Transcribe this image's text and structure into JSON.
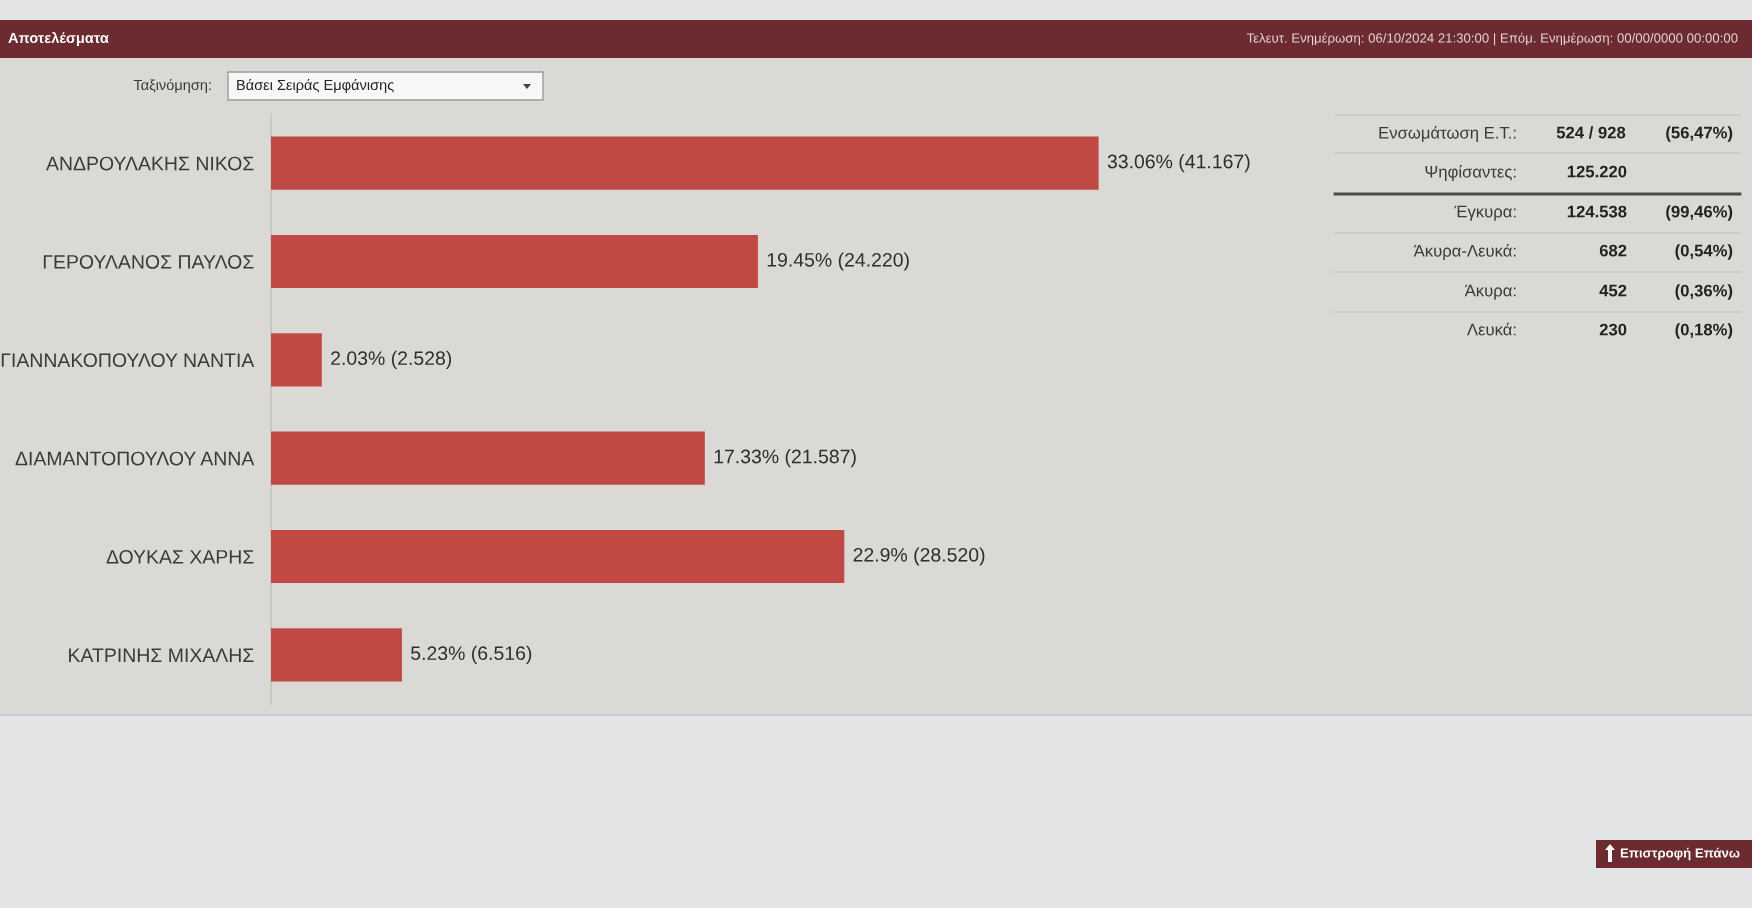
{
  "chart_data": {
    "type": "bar",
    "orientation": "horizontal",
    "title": "Αποτελέσματα",
    "subtitle": "Τελευτ. Ενημέρωση: 06/10/2024 21:30:00 | Επόμ. Ενημέρωση: 00/00/0000 00:00:00",
    "categories": [
      "ΑΝΔΡΟΥΛΑΚΗΣ ΝΙΚΟΣ",
      "ΓΕΡΟΥΛΑΝΟΣ ΠΑΥΛΟΣ",
      "ΓΙΑΝΝΑΚΟΠΟΥΛΟΥ ΝΑΝΤΙΑ",
      "ΔΙΑΜΑΝΤΟΠΟΥΛΟΥ ΑΝΝΑ",
      "ΔΟΥΚΑΣ ΧΑΡΗΣ",
      "ΚΑΤΡΙΝΗΣ ΜΙΧΑΛΗΣ"
    ],
    "values": [
      33.06,
      19.45,
      2.03,
      17.33,
      22.9,
      5.23
    ],
    "value_labels": [
      "33.06% (41.167)",
      "19.45% (24.220)",
      "2.03% (2.528)",
      "17.33% (21.587)",
      "22.9% (28.520)",
      "5.23% (6.516)"
    ],
    "color": "#c04a43",
    "tick_labels": "y",
    "annotations": [
      "Ταξινόμηση:",
      "Βάσει Σειράς Εμφάνισης",
      "Ενσωμάτωση Ε.Τ.:",
      "524 / 928",
      "(56,47%)",
      "Ψηφίσαντες:",
      "125.220",
      "Έγκυρα:",
      "124.538",
      "(99,46%)",
      "Άκυρα-Λευκά:",
      "682",
      "(0,54%)",
      "Άκυρα:",
      "452",
      "(0,36%)",
      "Λευκά:",
      "230",
      "(0,18%)",
      "Επιστροφή Επάνω"
    ]
  }
}
